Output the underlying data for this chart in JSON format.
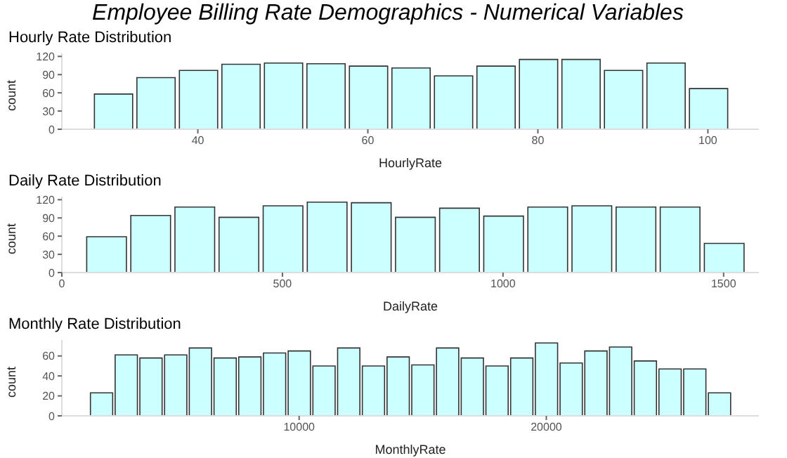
{
  "chart_data": [
    {
      "type": "histogram",
      "title": "Employee Billing Rate Demographics - Numerical Variables",
      "subtitle": "Hourly Rate Distribution",
      "xlabel": "HourlyRate",
      "ylabel": "count",
      "color": "#ccffff",
      "bins": [
        27.5,
        32.5,
        37.5,
        42.5,
        47.5,
        52.5,
        57.5,
        62.5,
        67.5,
        72.5,
        77.5,
        82.5,
        87.5,
        92.5,
        97.5,
        102.5
      ],
      "values": [
        58,
        85,
        97,
        107,
        109,
        108,
        104,
        101,
        88,
        104,
        115,
        115,
        97,
        109,
        67
      ],
      "xlim": [
        24,
        106
      ],
      "xticks": [
        40,
        60,
        80,
        100
      ],
      "ylim": [
        0,
        125
      ],
      "yticks": [
        0,
        30,
        60,
        90,
        120
      ],
      "grid": false,
      "legend": false
    },
    {
      "type": "histogram",
      "title": "Daily Rate Distribution",
      "xlabel": "DailyRate",
      "ylabel": "count",
      "color": "#ccffff",
      "bins": [
        50,
        150,
        250,
        350,
        450,
        550,
        650,
        750,
        850,
        950,
        1050,
        1150,
        1250,
        1350,
        1450,
        1550
      ],
      "values": [
        59,
        94,
        108,
        91,
        110,
        116,
        115,
        91,
        106,
        93,
        108,
        110,
        108,
        108,
        48
      ],
      "xlim": [
        0,
        1580
      ],
      "xticks": [
        0,
        500,
        1000,
        1500
      ],
      "ylim": [
        0,
        125
      ],
      "yticks": [
        0,
        30,
        60,
        90,
        120
      ],
      "grid": false,
      "legend": false
    },
    {
      "type": "histogram",
      "title": "Monthly Rate Distribution",
      "xlabel": "MonthlyRate",
      "ylabel": "count",
      "color": "#ccffff",
      "bins": [
        1500,
        2500,
        3500,
        4500,
        5500,
        6500,
        7500,
        8500,
        9500,
        10500,
        11500,
        12500,
        13500,
        14500,
        15500,
        16500,
        17500,
        18500,
        19500,
        20500,
        21500,
        22500,
        23500,
        24500,
        25500,
        26500,
        27500
      ],
      "values": [
        23,
        61,
        58,
        61,
        68,
        58,
        59,
        63,
        65,
        50,
        68,
        50,
        59,
        51,
        68,
        58,
        50,
        58,
        73,
        53,
        65,
        69,
        55,
        47,
        47,
        23
      ],
      "xlim": [
        400,
        28600
      ],
      "xticks": [
        10000,
        20000
      ],
      "ylim": [
        0,
        76
      ],
      "yticks": [
        0,
        20,
        40,
        60
      ],
      "grid": false,
      "legend": false
    }
  ]
}
